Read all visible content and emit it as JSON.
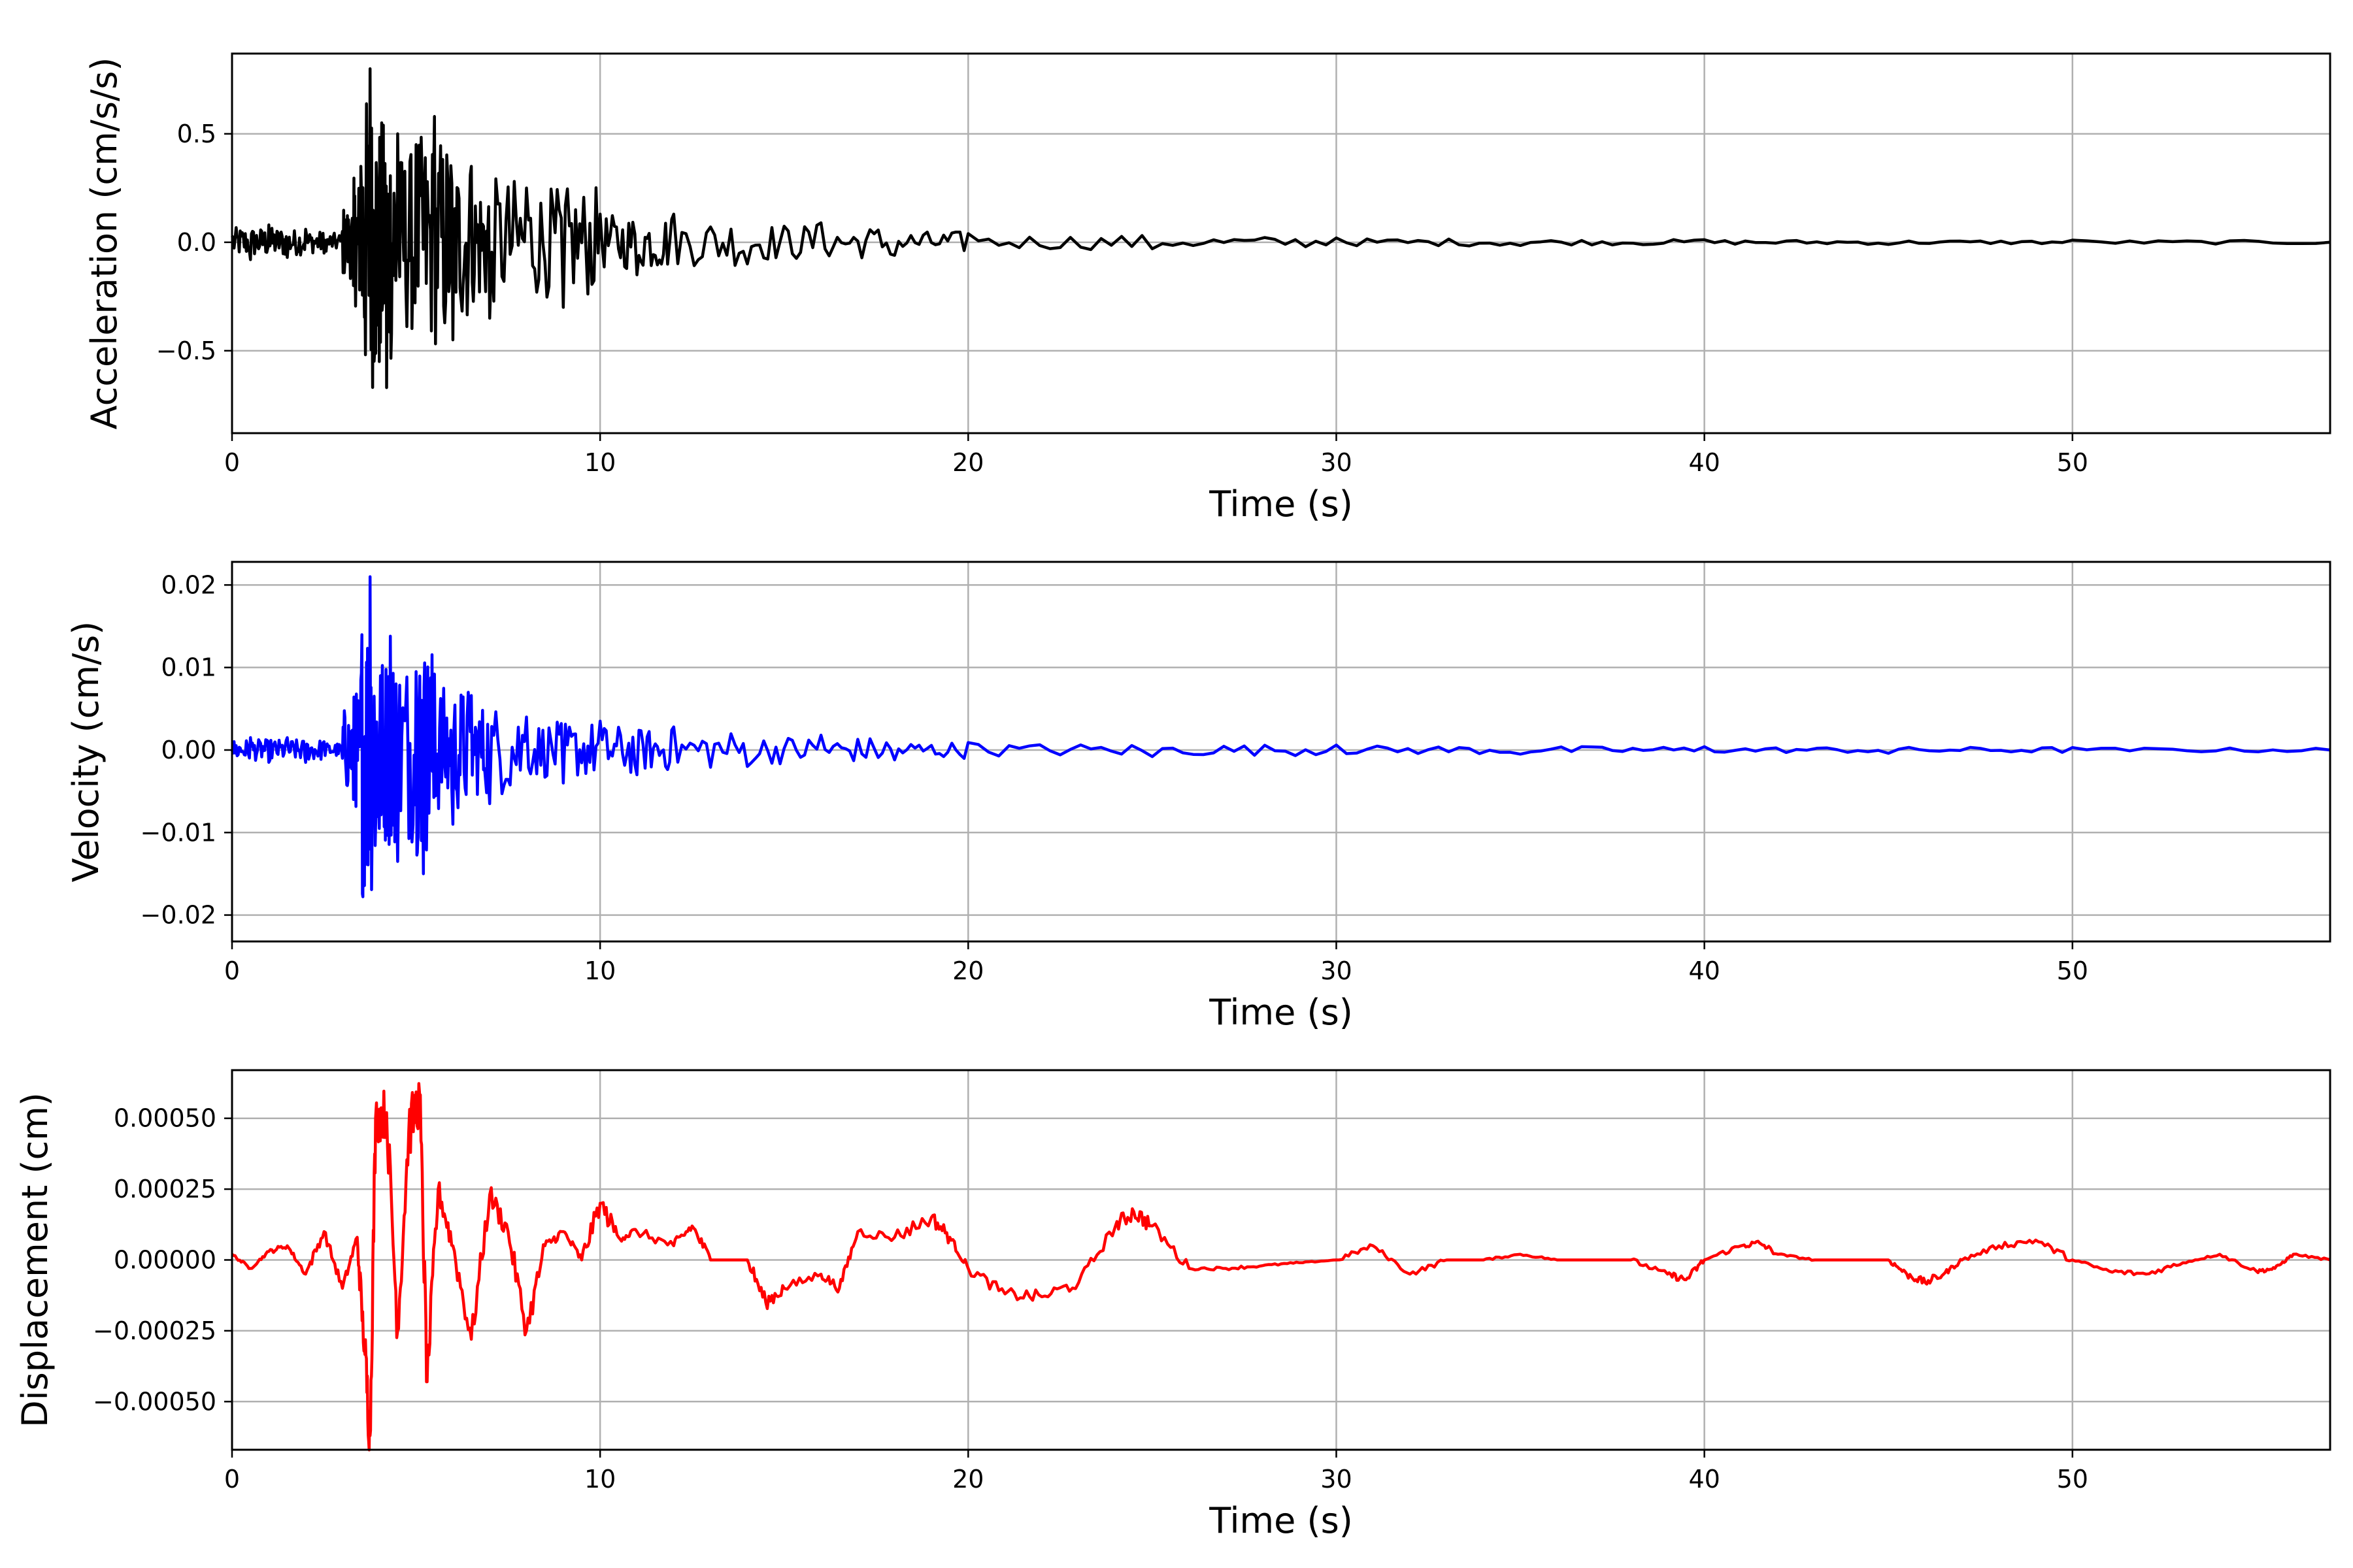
{
  "chart_data": [
    {
      "type": "line",
      "xlabel": "Time (s)",
      "ylabel": "Acceleration (cm/s/s)",
      "xlim": [
        0,
        57
      ],
      "ylim": [
        -0.88,
        0.87
      ],
      "xticks": [
        0,
        10,
        20,
        30,
        40,
        50
      ],
      "xtick_labels": [
        "0",
        "10",
        "20",
        "30",
        "40",
        "50"
      ],
      "yticks": [
        -0.5,
        0.0,
        0.5
      ],
      "ytick_labels": [
        "−0.5",
        "0.0",
        "0.5"
      ],
      "grid": true,
      "color": "#000000",
      "series": [
        {
          "x": [
            0,
            0.5,
            1.0,
            1.5,
            2.0,
            2.5,
            3.0,
            3.3,
            3.5,
            3.75,
            4.0,
            4.2,
            4.5,
            5.0,
            5.5,
            6.0,
            6.5,
            7.0,
            8.0,
            9.0,
            10.0,
            11.0,
            12.0,
            14.0,
            16.0,
            18.0,
            20.0,
            25.0,
            30.0,
            35.0,
            40.0,
            45.0,
            50.0,
            57.0
          ],
          "y": [
            0.03,
            -0.08,
            0.08,
            -0.07,
            0.06,
            -0.05,
            0.05,
            -0.2,
            0.35,
            0.8,
            -0.55,
            -0.67,
            0.5,
            0.45,
            0.58,
            -0.45,
            0.35,
            -0.35,
            0.25,
            -0.3,
            0.13,
            -0.15,
            0.13,
            -0.1,
            0.09,
            -0.06,
            0.04,
            -0.03,
            0.02,
            -0.015,
            0.012,
            -0.01,
            0.01,
            0.0
          ]
        }
      ]
    },
    {
      "type": "line",
      "xlabel": "Time (s)",
      "ylabel": "Velocity (cm/s)",
      "xlim": [
        0,
        57
      ],
      "ylim": [
        -0.0232,
        0.0228
      ],
      "xticks": [
        0,
        10,
        20,
        30,
        40,
        50
      ],
      "xtick_labels": [
        "0",
        "10",
        "20",
        "30",
        "40",
        "50"
      ],
      "yticks": [
        -0.02,
        -0.01,
        0.0,
        0.01,
        0.02
      ],
      "ytick_labels": [
        "−0.02",
        "−0.01",
        "0.00",
        "0.01",
        "0.02"
      ],
      "grid": true,
      "color": "#0000ff",
      "series": [
        {
          "x": [
            0,
            0.5,
            1.0,
            1.5,
            2.0,
            2.5,
            3.0,
            3.3,
            3.5,
            3.75,
            4.0,
            4.3,
            4.5,
            5.0,
            5.2,
            5.5,
            6.0,
            6.5,
            7.0,
            8.0,
            9.0,
            10.0,
            11.0,
            12.0,
            14.0,
            16.0,
            18.0,
            20.0,
            25.0,
            30.0,
            35.0,
            40.0,
            45.0,
            50.0,
            57.0
          ],
          "y": [
            0.0,
            0.0015,
            -0.0015,
            0.0015,
            -0.0015,
            0.001,
            -0.001,
            -0.006,
            0.0085,
            0.021,
            -0.0095,
            0.0138,
            -0.0135,
            0.0095,
            -0.015,
            0.0092,
            -0.009,
            0.0066,
            -0.0065,
            0.004,
            -0.004,
            0.0035,
            -0.003,
            0.0028,
            -0.002,
            0.0018,
            -0.0012,
            0.0009,
            -0.0008,
            0.0006,
            -0.0005,
            0.0004,
            -0.0004,
            0.0003,
            0.0
          ]
        }
      ]
    },
    {
      "type": "line",
      "xlabel": "Time (s)",
      "ylabel": "Displacement (cm)",
      "xlim": [
        0,
        57
      ],
      "ylim": [
        -0.00067,
        0.00067
      ],
      "xticks": [
        0,
        10,
        20,
        30,
        40,
        50
      ],
      "xtick_labels": [
        "0",
        "10",
        "20",
        "30",
        "40",
        "50"
      ],
      "yticks": [
        -0.0005,
        -0.00025,
        0.0,
        0.00025,
        0.0005
      ],
      "ytick_labels": [
        "−0.00050",
        "−0.00025",
        "0.00000",
        "0.00025",
        "0.00050"
      ],
      "grid": true,
      "color": "#ff0000",
      "series": [
        {
          "x": [
            0,
            0.5,
            1.0,
            1.5,
            2.0,
            2.5,
            3.0,
            3.4,
            3.6,
            3.75,
            3.9,
            4.2,
            4.5,
            4.8,
            5.1,
            5.3,
            5.6,
            6.0,
            6.5,
            7.0,
            7.5,
            8.0,
            8.5,
            9.0,
            9.5,
            10.0,
            10.5,
            11.0,
            12.0,
            12.5,
            13.0,
            14.0,
            14.5,
            15.0,
            16.0,
            16.5,
            17.0,
            18.0,
            19.0,
            19.5,
            20.0,
            21.0,
            22.0,
            23.0,
            24.0,
            24.5,
            25.0,
            26.0,
            27.0,
            28.0,
            29.0,
            30.0,
            31.0,
            32.0,
            33.0,
            34.0,
            35.0,
            36.0,
            37.0,
            38.0,
            39.0,
            39.5,
            40.0,
            41.0,
            41.5,
            42.0,
            43.0,
            44.0,
            45.0,
            45.5,
            46.0,
            46.5,
            47.0,
            48.0,
            49.0,
            50.0,
            51.0,
            52.0,
            53.0,
            54.0,
            55.0,
            55.5,
            56.0,
            57.0
          ],
          "y": [
            2e-05,
            -3e-05,
            3e-05,
            5e-05,
            -5e-05,
            0.0001,
            -0.0001,
            8e-05,
            -0.00032,
            -0.00062,
            0.0005,
            0.00052,
            -0.00025,
            0.00045,
            0.00058,
            -0.00043,
            0.00025,
            5e-05,
            -0.00028,
            0.00023,
            0.0001,
            -0.00025,
            5e-05,
            0.0001,
            0.0,
            0.0002,
            8e-05,
            0.0001,
            5e-05,
            0.00012,
            0.0,
            0.0,
            -0.00015,
            -0.0001,
            -5e-05,
            -0.0001,
            0.0001,
            8e-05,
            0.00015,
            8e-05,
            -3e-05,
            -0.00012,
            -0.00013,
            -8e-05,
            0.00012,
            0.00017,
            0.00012,
            -3e-05,
            -3e-05,
            -2e-05,
            -1e-05,
            0.0,
            5e-05,
            -5e-05,
            0.0,
            0.0,
            2e-05,
            0.0,
            0.0,
            0.0,
            -5e-05,
            -7e-05,
            0.0,
            5e-05,
            6e-05,
            2e-05,
            0.0,
            0.0,
            0.0,
            -5e-05,
            -8e-05,
            -5e-05,
            0.0,
            5e-05,
            7e-05,
            0.0,
            -4e-05,
            -5e-05,
            -1e-05,
            2e-05,
            -4e-05,
            -3e-05,
            2e-05,
            0.0
          ]
        }
      ]
    }
  ]
}
